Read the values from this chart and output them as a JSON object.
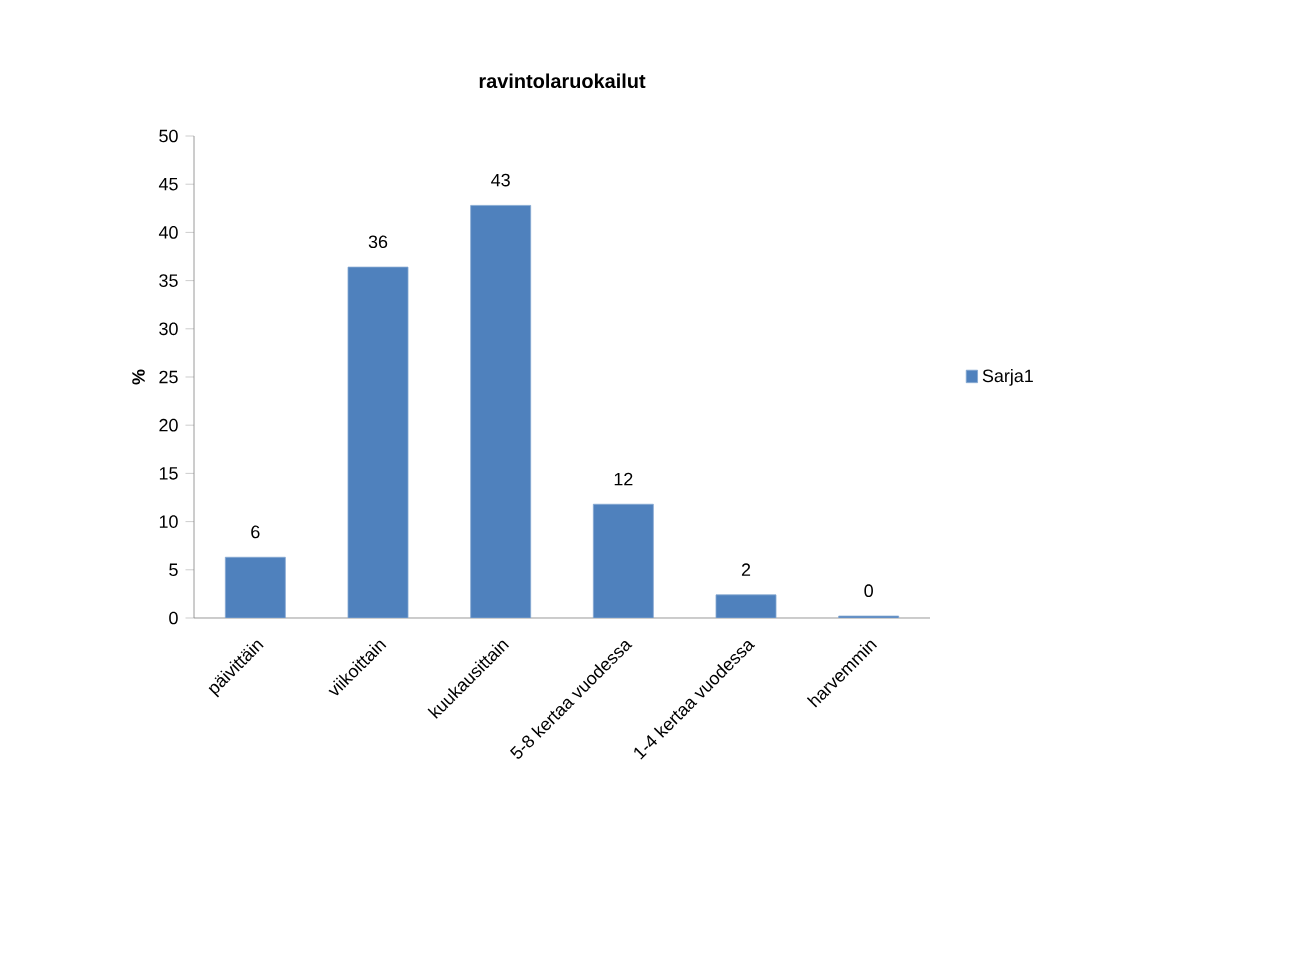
{
  "chart_data": {
    "type": "bar",
    "title": "ravintolaruokailut",
    "ylabel": "%",
    "categories": [
      "päivittäin",
      "viikoittain",
      "kuukausittain",
      "5-8 kertaa vuodessa",
      "1-4 kertaa vuodessa",
      "harvemmin"
    ],
    "series": [
      {
        "name": "Sarja1",
        "color": "#4f81bd",
        "values": [
          6.3,
          36.4,
          42.8,
          11.8,
          2.4,
          0.2
        ],
        "value_labels": [
          "6",
          "36",
          "43",
          "12",
          "2",
          "0"
        ]
      }
    ],
    "ylim": [
      0,
      50
    ],
    "yticks": [
      0,
      5,
      10,
      15,
      20,
      25,
      30,
      35,
      40,
      45,
      50
    ],
    "grid": false,
    "legend": "right"
  }
}
